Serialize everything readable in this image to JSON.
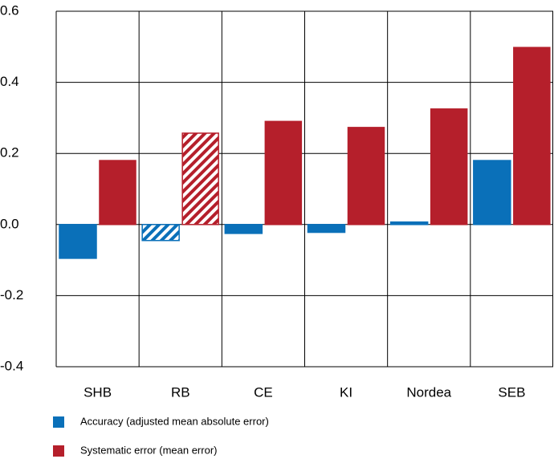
{
  "chart_data": {
    "type": "bar",
    "categories": [
      "SHB",
      "RB",
      "CE",
      "KI",
      "Nordea",
      "SEB"
    ],
    "series": [
      {
        "name": "Accuracy (adjusted mean absolute error)",
        "color": "#0a70b9",
        "values": [
          -0.095,
          -0.045,
          -0.025,
          -0.022,
          0.007,
          0.18
        ]
      },
      {
        "name": "Systematic error (mean error)",
        "color": "#b51f2b",
        "values": [
          0.18,
          0.257,
          0.29,
          0.273,
          0.325,
          0.498
        ]
      }
    ],
    "hatched": [
      false,
      true,
      false,
      false,
      false,
      false
    ],
    "ylim": [
      -0.4,
      0.6
    ],
    "yticks": [
      -0.4,
      -0.2,
      {
        "value": 0,
        "label": "0.0"
      },
      0.2,
      0.4,
      0.6
    ],
    "grid": true
  }
}
